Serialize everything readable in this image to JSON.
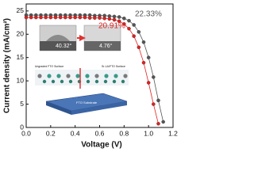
{
  "chart_data": {
    "type": "line",
    "x_label": "Voltage (V)",
    "y_label": "Current density (mA/cm²)",
    "x": [
      0,
      0.04,
      0.08,
      0.12,
      0.16,
      0.2,
      0.24,
      0.28,
      0.32,
      0.36,
      0.4,
      0.44,
      0.48,
      0.52,
      0.56,
      0.6,
      0.64,
      0.68,
      0.72,
      0.76,
      0.8,
      0.84,
      0.88,
      0.92,
      0.96,
      1.0,
      1.04,
      1.08,
      1.12
    ],
    "series": [
      {
        "name": "22.33%",
        "color": "#555555",
        "values": [
          24.1,
          24.1,
          24.1,
          24.1,
          24.1,
          24.1,
          24.1,
          24.1,
          24.1,
          24.1,
          24.1,
          24.1,
          24.1,
          24.1,
          24.0,
          24.0,
          24.0,
          23.9,
          23.8,
          23.7,
          23.4,
          22.9,
          22.0,
          20.5,
          18.3,
          15.0,
          10.8,
          5.8,
          1.2
        ]
      },
      {
        "name": "20.91%",
        "color": "#e02020",
        "values": [
          23.6,
          23.6,
          23.6,
          23.6,
          23.6,
          23.6,
          23.6,
          23.6,
          23.6,
          23.6,
          23.6,
          23.6,
          23.6,
          23.5,
          23.5,
          23.5,
          23.4,
          23.3,
          23.1,
          22.8,
          22.2,
          21.2,
          19.6,
          17.2,
          13.9,
          9.6,
          5.0,
          0.8,
          null
        ]
      }
    ],
    "xlim": [
      0,
      1.2
    ],
    "ylim": [
      0,
      26.5
    ],
    "xticks": [
      {
        "value": 0,
        "label": "0.0"
      },
      {
        "value": 0.2,
        "label": "0.2"
      },
      {
        "value": 0.4,
        "label": "0.4"
      },
      {
        "value": 0.6,
        "label": "0.6"
      },
      {
        "value": 0.8,
        "label": "0.8"
      },
      {
        "value": 1.0,
        "label": "1.0"
      },
      {
        "value": 1.2,
        "label": "1.2"
      }
    ],
    "yticks": [
      0,
      5,
      10,
      15,
      20,
      25
    ],
    "inset_labels": {
      "angle_left": "40.32°",
      "angle_right": "4.76°",
      "surface_left": "Ungraded FTO Surface",
      "surface_right": "Sr-LA/FTO Surface",
      "substrate": "FTO Substrate"
    }
  }
}
